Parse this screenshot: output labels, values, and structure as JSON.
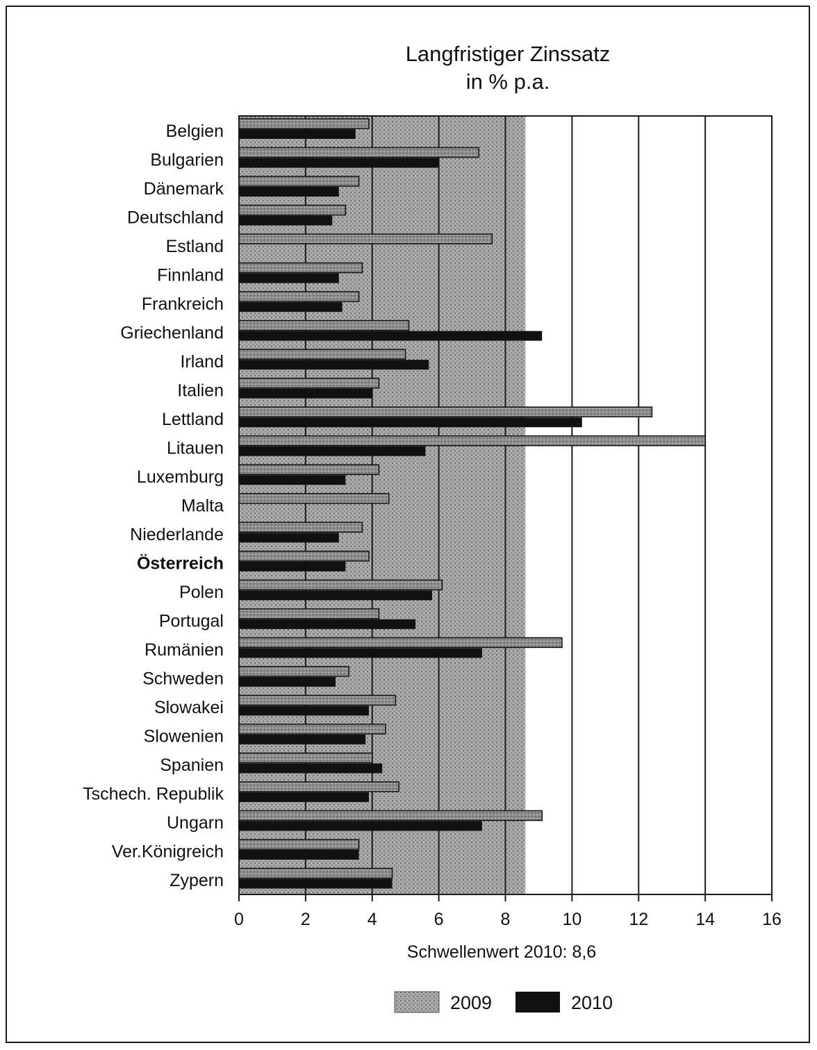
{
  "chart_data": {
    "type": "bar",
    "orientation": "horizontal",
    "title_line1": "Langfristiger Zinssatz",
    "title_line2": "in % p.a.",
    "categories": [
      "Belgien",
      "Bulgarien",
      "Dänemark",
      "Deutschland",
      "Estland",
      "Finnland",
      "Frankreich",
      "Griechenland",
      "Irland",
      "Italien",
      "Lettland",
      "Litauen",
      "Luxemburg",
      "Malta",
      "Niederlande",
      "Österreich",
      "Polen",
      "Portugal",
      "Rumänien",
      "Schweden",
      "Slowakei",
      "Slowenien",
      "Spanien",
      "Tschech. Republik",
      "Ungarn",
      "Ver.Königreich",
      "Zypern"
    ],
    "highlight_category": "Österreich",
    "series": [
      {
        "name": "2009",
        "color": "#9a9a9a",
        "values": [
          3.9,
          7.2,
          3.6,
          3.2,
          7.6,
          3.7,
          3.6,
          5.1,
          5.0,
          4.2,
          12.4,
          14.0,
          4.2,
          4.5,
          3.7,
          3.9,
          6.1,
          4.2,
          9.7,
          3.3,
          4.7,
          4.4,
          4.0,
          4.8,
          9.1,
          3.6,
          4.6
        ]
      },
      {
        "name": "2010",
        "color": "#111111",
        "values": [
          3.5,
          6.0,
          3.0,
          2.8,
          0,
          3.0,
          3.1,
          9.1,
          5.7,
          4.0,
          10.3,
          5.6,
          3.2,
          0,
          3.0,
          3.2,
          5.8,
          5.3,
          7.3,
          2.9,
          3.9,
          3.8,
          4.3,
          3.9,
          7.3,
          3.6,
          4.6
        ]
      }
    ],
    "xlim": [
      0,
      16
    ],
    "xticks": [
      0,
      2,
      4,
      6,
      8,
      10,
      12,
      14,
      16
    ],
    "grid": true,
    "reference_shading_to": 8.6,
    "threshold_note": "Schwellenwert 2010: 8,6",
    "legend_position": "bottom-center"
  }
}
